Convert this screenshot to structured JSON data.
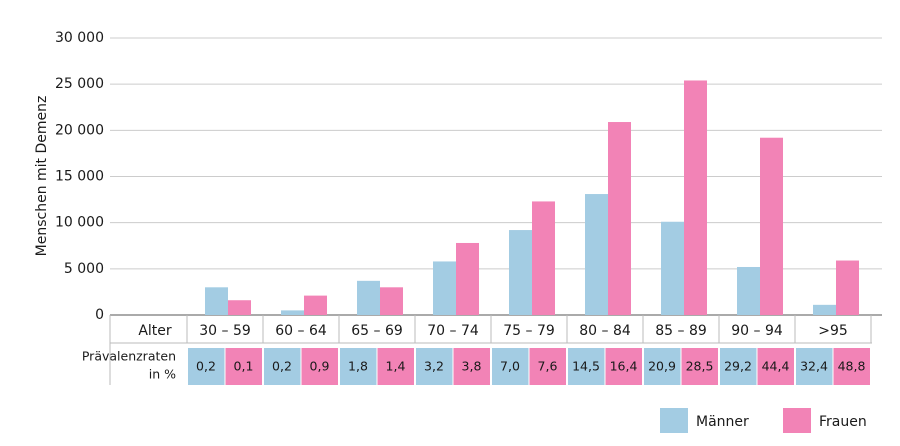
{
  "chart_data": {
    "type": "bar",
    "y_label": "Menschen mit Demenz",
    "x_label": "Alter",
    "categories": [
      "30 – 59",
      "60 – 64",
      "65 – 69",
      "70 – 74",
      "75 – 79",
      "80 – 84",
      "85 – 89",
      "90 – 94",
      ">95"
    ],
    "series": [
      {
        "name": "Männer",
        "color": "#a3cce3",
        "values": [
          3000,
          500,
          3700,
          5800,
          9200,
          13100,
          10100,
          5200,
          1100
        ]
      },
      {
        "name": "Frauen",
        "color": "#f283b6",
        "values": [
          1600,
          2100,
          3000,
          7800,
          12300,
          20900,
          25400,
          19200,
          5900
        ]
      }
    ],
    "ylim": [
      0,
      30000
    ],
    "yticks": [
      0,
      {
        "value": 5000,
        "label": "5 000"
      },
      {
        "value": 10000,
        "label": "10 000"
      },
      {
        "value": 15000,
        "label": "15 000"
      },
      {
        "value": 20000,
        "label": "20 000"
      },
      {
        "value": 25000,
        "label": "25 000"
      },
      {
        "value": 30000,
        "label": "30 000"
      }
    ],
    "grid": true,
    "prevalence": {
      "label_lines": [
        "Prävalenzraten",
        "in %"
      ],
      "rows": [
        [
          "0,2",
          "0,2",
          "1,8",
          "3,2",
          "7,0",
          "14,5",
          "20,9",
          "29,2",
          "32,4"
        ],
        [
          "0,1",
          "0,9",
          "1,4",
          "3,8",
          "7,6",
          "16,4",
          "28,5",
          "44,4",
          "48,8"
        ]
      ]
    }
  }
}
